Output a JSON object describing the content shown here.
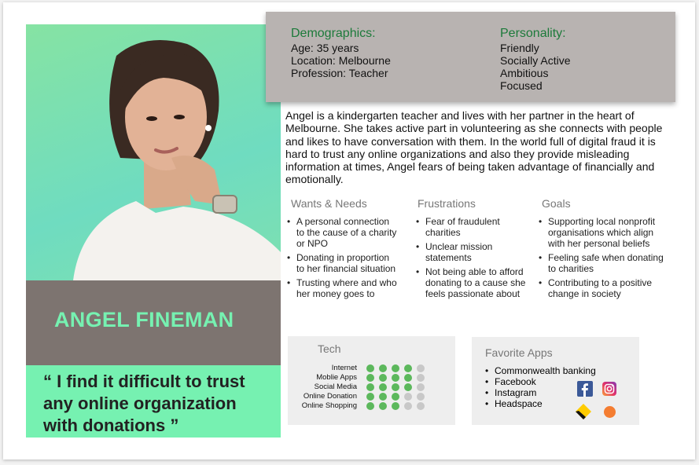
{
  "persona": {
    "name": "ANGEL FINEMAN",
    "quote": "“ I find it difficult to trust any online organization with donations ”"
  },
  "demographics": {
    "heading": "Demographics:",
    "lines": [
      "Age: 35 years",
      "Location: Melbourne",
      "Profession: Teacher"
    ]
  },
  "personality": {
    "heading": "Personality:",
    "lines": [
      "Friendly",
      "Socially Active",
      "Ambitious",
      "Focused"
    ]
  },
  "bio": "Angel is a kindergarten teacher and lives with her partner in the heart of Melbourne. She takes active part in volunteering as she connects with people and likes to have conversation with them. In the world full of digital fraud it is hard to trust any online organizations and also they provide misleading information at times, Angel fears of being taken advantage of financially and emotionally.",
  "wants": {
    "heading": "Wants & Needs",
    "items": [
      "A personal connection to the cause of a charity or NPO",
      "Donating in proportion to her financial situation",
      "Trusting where and who her money goes to"
    ]
  },
  "frustrations": {
    "heading": "Frustrations",
    "items": [
      "Fear of fraudulent charities",
      "Unclear mission statements",
      "Not being able to afford donating to a cause she feels passionate about"
    ]
  },
  "goals": {
    "heading": "Goals",
    "items": [
      "Supporting local nonprofit organisations which align with her personal beliefs",
      "Feeling safe when donating to charities",
      "Contributing to a positive change in society"
    ]
  },
  "tech": {
    "heading": "Tech",
    "max": 5,
    "rows": [
      {
        "label": "Internet",
        "level": 4
      },
      {
        "label": "Moblie Apps",
        "level": 4
      },
      {
        "label": "Social Media",
        "level": 4
      },
      {
        "label": "Online Donation",
        "level": 3
      },
      {
        "label": "Online Shopping",
        "level": 3
      }
    ]
  },
  "apps": {
    "heading": "Favorite Apps",
    "items": [
      "Commonwealth banking",
      "Facebook",
      "Instagram",
      "Headspace"
    ],
    "icons": [
      "facebook-icon",
      "instagram-icon",
      "commonwealth-bank-icon",
      "headspace-icon"
    ]
  },
  "colors": {
    "accent_green": "#76f1b1",
    "name_panel": "#7d7470",
    "demographics_panel": "#b8b3b1",
    "heading_green": "#1c7a3a",
    "dot_filled": "#5cb85c",
    "dot_empty": "#c8c8c8"
  }
}
